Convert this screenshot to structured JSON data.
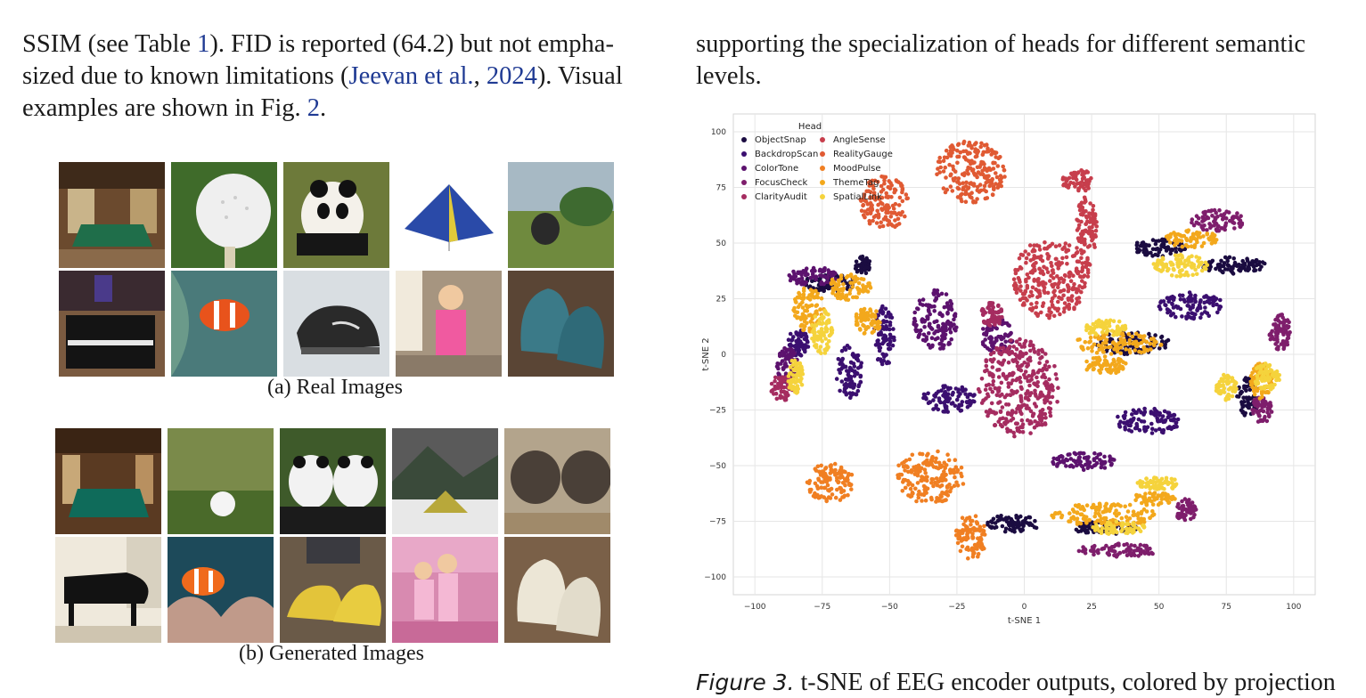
{
  "left_paragraph": {
    "s1": "SSIM (see Table ",
    "ref_table": "1",
    "s2": "). FID is reported (64.2) but not empha-sized due to known limitations (",
    "cite_author": "Jeevan et al.",
    "s3": ", ",
    "cite_year": "2024",
    "s4": "). Visual examples are shown in Fig. ",
    "ref_fig": "2",
    "s5": "."
  },
  "right_paragraph": {
    "text": "supporting the specialization of heads for different semantic levels."
  },
  "subfigures": [
    {
      "label": "(a)",
      "caption": "Real Images",
      "tiles": [
        "billiard-room",
        "golf-ball",
        "panda",
        "blue-tent",
        "elephant",
        "upright-piano",
        "clownfish",
        "black-sneakers",
        "girl-pink-pajamas",
        "knit-mittens"
      ]
    },
    {
      "label": "(b)",
      "caption": "Generated Images",
      "tiles": [
        "billiard-room",
        "golf-ball",
        "two-pandas",
        "tent-in-snow",
        "elephants",
        "grand-piano",
        "clownfish",
        "yellow-sneakers",
        "girls-pink-room",
        "white-mittens"
      ]
    }
  ],
  "figure_caption": {
    "label": "Figure 3.",
    "text": " t-SNE of EEG encoder outputs, colored by projection"
  },
  "chart_data": {
    "type": "scatter",
    "xlabel": "t-SNE 1",
    "ylabel": "t-SNE 2",
    "xlim": [
      -108,
      108
    ],
    "ylim": [
      -108,
      108
    ],
    "xticks": [
      -100,
      -75,
      -50,
      -25,
      0,
      25,
      50,
      75,
      100
    ],
    "yticks": [
      -100,
      -75,
      -50,
      -25,
      0,
      25,
      50,
      75,
      100
    ],
    "grid": true,
    "legend": {
      "title": "Head",
      "placement": "top-left",
      "columns": 2
    },
    "series": [
      {
        "name": "ObjectSnap",
        "color": "#1b0c41",
        "clusters": [
          [
            -72,
            32,
            10,
            4
          ],
          [
            40,
            5,
            14,
            5
          ],
          [
            -4,
            -76,
            10,
            4
          ],
          [
            83,
            -19,
            4,
            9
          ],
          [
            78,
            40,
            12,
            4
          ],
          [
            50,
            48,
            10,
            4
          ],
          [
            30,
            -78,
            12,
            3
          ],
          [
            -60,
            40,
            3,
            4
          ]
        ]
      },
      {
        "name": "BackdropScan",
        "color": "#3b0f70",
        "clusters": [
          [
            -65,
            -8,
            5,
            12
          ],
          [
            -52,
            8,
            4,
            14
          ],
          [
            -28,
            -20,
            10,
            6
          ],
          [
            46,
            -30,
            12,
            6
          ],
          [
            62,
            22,
            12,
            6
          ],
          [
            -84,
            5,
            4,
            6
          ]
        ]
      },
      {
        "name": "ColorTone",
        "color": "#5c126e",
        "clusters": [
          [
            -33,
            15,
            8,
            14
          ],
          [
            -10,
            8,
            6,
            8
          ],
          [
            -78,
            35,
            10,
            4
          ],
          [
            22,
            -48,
            12,
            4
          ],
          [
            -88,
            -5,
            4,
            8
          ]
        ]
      },
      {
        "name": "FocusCheck",
        "color": "#7e1e6c",
        "clusters": [
          [
            72,
            60,
            10,
            5
          ],
          [
            95,
            10,
            4,
            8
          ],
          [
            35,
            -88,
            15,
            3
          ],
          [
            88,
            -25,
            4,
            6
          ],
          [
            60,
            -70,
            4,
            5
          ]
        ]
      },
      {
        "name": "ClarityAudit",
        "color": "#a52c60",
        "clusters": [
          [
            -2,
            -15,
            15,
            22
          ],
          [
            -12,
            18,
            4,
            6
          ],
          [
            -90,
            -15,
            4,
            6
          ]
        ]
      },
      {
        "name": "AngleSense",
        "color": "#c73e4c",
        "clusters": [
          [
            10,
            34,
            14,
            18
          ],
          [
            23,
            55,
            4,
            16
          ],
          [
            20,
            78,
            6,
            5
          ]
        ]
      },
      {
        "name": "RealityGauge",
        "color": "#e05a33",
        "clusters": [
          [
            -20,
            82,
            13,
            14
          ],
          [
            -52,
            68,
            9,
            12
          ]
        ]
      },
      {
        "name": "MoodPulse",
        "color": "#f07f22",
        "clusters": [
          [
            -72,
            -58,
            9,
            9
          ],
          [
            -35,
            -55,
            13,
            12
          ],
          [
            -20,
            -82,
            6,
            10
          ]
        ]
      },
      {
        "name": "ThemeTag",
        "color": "#f3a81c",
        "clusters": [
          [
            -80,
            20,
            6,
            10
          ],
          [
            -65,
            30,
            8,
            6
          ],
          [
            30,
            -72,
            20,
            5
          ],
          [
            62,
            52,
            10,
            4
          ],
          [
            88,
            -12,
            4,
            8
          ],
          [
            35,
            5,
            16,
            5
          ],
          [
            30,
            -5,
            8,
            4
          ],
          [
            48,
            -65,
            8,
            3
          ],
          [
            -58,
            15,
            5,
            6
          ]
        ]
      },
      {
        "name": "SpatialLink",
        "color": "#f5d33c",
        "clusters": [
          [
            58,
            40,
            10,
            5
          ],
          [
            90,
            -10,
            5,
            6
          ],
          [
            50,
            -58,
            8,
            3
          ],
          [
            -75,
            10,
            4,
            10
          ],
          [
            35,
            -78,
            10,
            3
          ],
          [
            30,
            12,
            8,
            4
          ],
          [
            -85,
            -10,
            3,
            8
          ],
          [
            75,
            -15,
            4,
            6
          ]
        ]
      }
    ]
  }
}
